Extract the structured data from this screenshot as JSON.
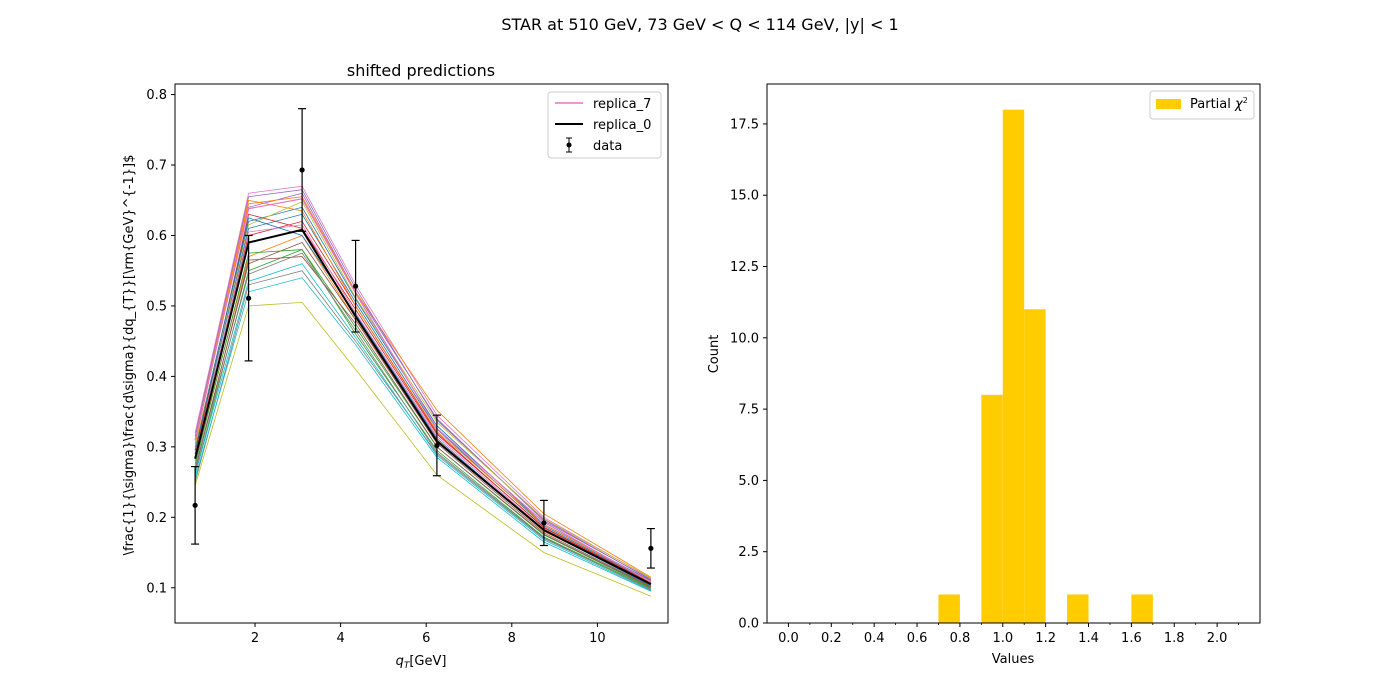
{
  "figure": {
    "suptitle": "STAR at 510 GeV, 73 GeV < Q < 114 GeV, |y| < 1"
  },
  "chart_data": [
    {
      "type": "line",
      "title": "shifted predictions",
      "xlabel": "q_T[GeV]",
      "ylabel": "\\frac{1}{\\sigma}\\frac{d\\sigma}{dq_{T}}[\\rm{GeV}^{-1}]$",
      "xlim": [
        0.13,
        11.65
      ],
      "ylim": [
        0.05,
        0.815
      ],
      "xticks": [
        2,
        4,
        6,
        8,
        10
      ],
      "yticks": [
        0.1,
        0.2,
        0.3,
        0.4,
        0.5,
        0.6,
        0.7,
        0.8
      ],
      "x": [
        0.6,
        1.85,
        3.1,
        4.35,
        6.25,
        8.75,
        11.25
      ],
      "grid": false,
      "legend_placement": "upper right",
      "legend": [
        "replica_7",
        "replica_0",
        "data"
      ],
      "data": {
        "name": "data",
        "y": [
          0.217,
          0.511,
          0.693,
          0.528,
          0.302,
          0.192,
          0.156
        ],
        "yerr_low": [
          0.055,
          0.089,
          0.087,
          0.065,
          0.043,
          0.032,
          0.028
        ],
        "yerr_high": [
          0.055,
          0.089,
          0.087,
          0.065,
          0.043,
          0.032,
          0.028
        ],
        "color": "#000000"
      },
      "series": [
        {
          "name": "replica_0",
          "y": [
            0.283,
            0.59,
            0.608,
            0.485,
            0.308,
            0.182,
            0.105
          ],
          "color": "#000000",
          "highlight": true
        },
        {
          "name": "replica_7",
          "y": [
            0.31,
            0.638,
            0.652,
            0.518,
            0.326,
            0.193,
            0.108
          ],
          "color": "#e377c2",
          "highlight": true
        },
        {
          "y": [
            0.3,
            0.62,
            0.64,
            0.51,
            0.33,
            0.19,
            0.11
          ],
          "color": "#1f77b4"
        },
        {
          "y": [
            0.28,
            0.57,
            0.6,
            0.48,
            0.31,
            0.18,
            0.105
          ],
          "color": "#ff7f0e"
        },
        {
          "y": [
            0.26,
            0.55,
            0.58,
            0.47,
            0.3,
            0.175,
            0.1
          ],
          "color": "#2ca02c"
        },
        {
          "y": [
            0.29,
            0.6,
            0.62,
            0.5,
            0.32,
            0.185,
            0.106
          ],
          "color": "#d62728"
        },
        {
          "y": [
            0.31,
            0.64,
            0.66,
            0.52,
            0.34,
            0.195,
            0.112
          ],
          "color": "#9467bd"
        },
        {
          "y": [
            0.27,
            0.56,
            0.59,
            0.48,
            0.305,
            0.178,
            0.102
          ],
          "color": "#8c564b"
        },
        {
          "y": [
            0.32,
            0.66,
            0.67,
            0.53,
            0.345,
            0.2,
            0.113
          ],
          "color": "#e377c2"
        },
        {
          "y": [
            0.25,
            0.53,
            0.55,
            0.45,
            0.29,
            0.17,
            0.098
          ],
          "color": "#7f7f7f"
        },
        {
          "y": [
            0.245,
            0.5,
            0.505,
            0.41,
            0.26,
            0.15,
            0.088
          ],
          "color": "#bcbd22"
        },
        {
          "y": [
            0.255,
            0.52,
            0.54,
            0.445,
            0.285,
            0.165,
            0.095
          ],
          "color": "#17becf"
        },
        {
          "y": [
            0.295,
            0.61,
            0.63,
            0.505,
            0.325,
            0.188,
            0.108
          ],
          "color": "#1f77b4"
        },
        {
          "y": [
            0.305,
            0.645,
            0.655,
            0.52,
            0.352,
            0.205,
            0.115
          ],
          "color": "#ff7f0e"
        },
        {
          "y": [
            0.275,
            0.575,
            0.58,
            0.46,
            0.295,
            0.172,
            0.099
          ],
          "color": "#2ca02c"
        },
        {
          "y": [
            0.29,
            0.63,
            0.61,
            0.495,
            0.318,
            0.186,
            0.107
          ],
          "color": "#d62728"
        },
        {
          "y": [
            0.315,
            0.655,
            0.665,
            0.525,
            0.338,
            0.197,
            0.111
          ],
          "color": "#9467bd"
        },
        {
          "y": [
            0.265,
            0.565,
            0.57,
            0.475,
            0.3,
            0.176,
            0.101
          ],
          "color": "#8c564b"
        },
        {
          "y": [
            0.285,
            0.605,
            0.615,
            0.49,
            0.315,
            0.183,
            0.104
          ],
          "color": "#e377c2"
        },
        {
          "y": [
            0.27,
            0.545,
            0.575,
            0.465,
            0.292,
            0.171,
            0.097
          ],
          "color": "#7f7f7f"
        },
        {
          "y": [
            0.3,
            0.615,
            0.648,
            0.512,
            0.335,
            0.198,
            0.114
          ],
          "color": "#bcbd22"
        },
        {
          "y": [
            0.26,
            0.535,
            0.56,
            0.455,
            0.288,
            0.168,
            0.096
          ],
          "color": "#17becf"
        },
        {
          "y": [
            0.295,
            0.625,
            0.6,
            0.488,
            0.312,
            0.181,
            0.103
          ],
          "color": "#1f77b4"
        },
        {
          "y": [
            0.31,
            0.65,
            0.635,
            0.5,
            0.322,
            0.19,
            0.109
          ],
          "color": "#ff7f0e"
        }
      ]
    },
    {
      "type": "bar",
      "title": "",
      "xlabel": "Values",
      "ylabel": "Count",
      "xlim": [
        -0.1,
        2.2
      ],
      "ylim": [
        0,
        18.9
      ],
      "xticks": [
        0.0,
        0.2,
        0.4,
        0.6,
        0.8,
        1.0,
        1.2,
        1.4,
        1.6,
        1.8,
        2.0
      ],
      "xtick_labels": [
        "0.0",
        "0.2",
        "0.4",
        "0.6",
        "0.8",
        "1.0",
        "1.2",
        "1.4",
        "1.6",
        "1.8",
        "2.0"
      ],
      "yticks": [
        0.0,
        2.5,
        5.0,
        7.5,
        10.0,
        12.5,
        15.0,
        17.5
      ],
      "ytick_labels": [
        "0.0",
        "2.5",
        "5.0",
        "7.5",
        "10.0",
        "12.5",
        "15.0",
        "17.5"
      ],
      "bin_width": 0.1,
      "bin_starts": [
        0.7,
        0.9,
        1.0,
        1.1,
        1.3,
        1.6
      ],
      "values": [
        1,
        8,
        18,
        11,
        1,
        1
      ],
      "color": "#ffcc00",
      "grid": false,
      "legend_placement": "upper right",
      "legend": [
        "Partial χ²"
      ]
    }
  ]
}
